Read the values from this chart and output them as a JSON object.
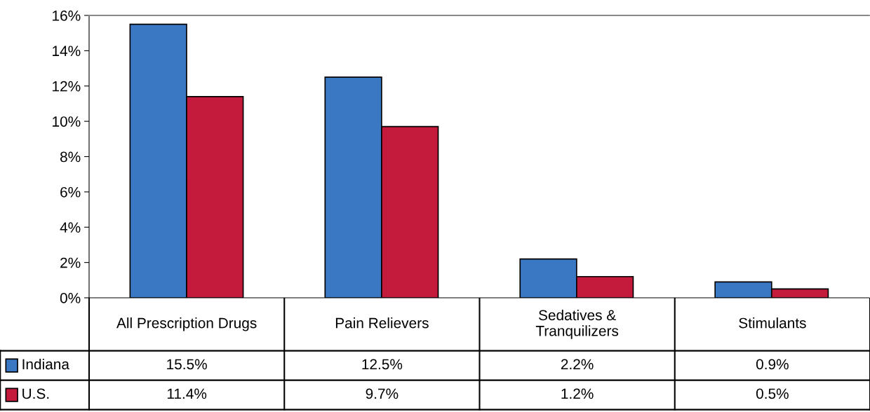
{
  "chart_data": {
    "type": "bar",
    "categories": [
      "All Prescription Drugs",
      "Pain Relievers",
      "Sedatives &\nTranquilizers",
      "Stimulants"
    ],
    "series": [
      {
        "name": "Indiana",
        "color": "#3a78c4",
        "values": [
          15.5,
          12.5,
          2.2,
          0.9
        ]
      },
      {
        "name": "U.S.",
        "color": "#c41a3c",
        "values": [
          11.4,
          9.7,
          1.2,
          0.5
        ]
      }
    ],
    "ylim": [
      0,
      16
    ],
    "yticks": [
      {
        "value": 0,
        "label": "0%"
      },
      {
        "value": 2,
        "label": "2%"
      },
      {
        "value": 4,
        "label": "4%"
      },
      {
        "value": 6,
        "label": "6%"
      },
      {
        "value": 8,
        "label": "8%"
      },
      {
        "value": 10,
        "label": "10%"
      },
      {
        "value": 12,
        "label": "12%"
      },
      {
        "value": 14,
        "label": "14%"
      },
      {
        "value": 16,
        "label": "16%"
      }
    ],
    "value_labels": [
      [
        "15.5%",
        "12.5%",
        "2.2%",
        "0.9%"
      ],
      [
        "11.4%",
        "9.7%",
        "1.2%",
        "0.5%"
      ]
    ],
    "legend": "bottom",
    "grid": false
  }
}
